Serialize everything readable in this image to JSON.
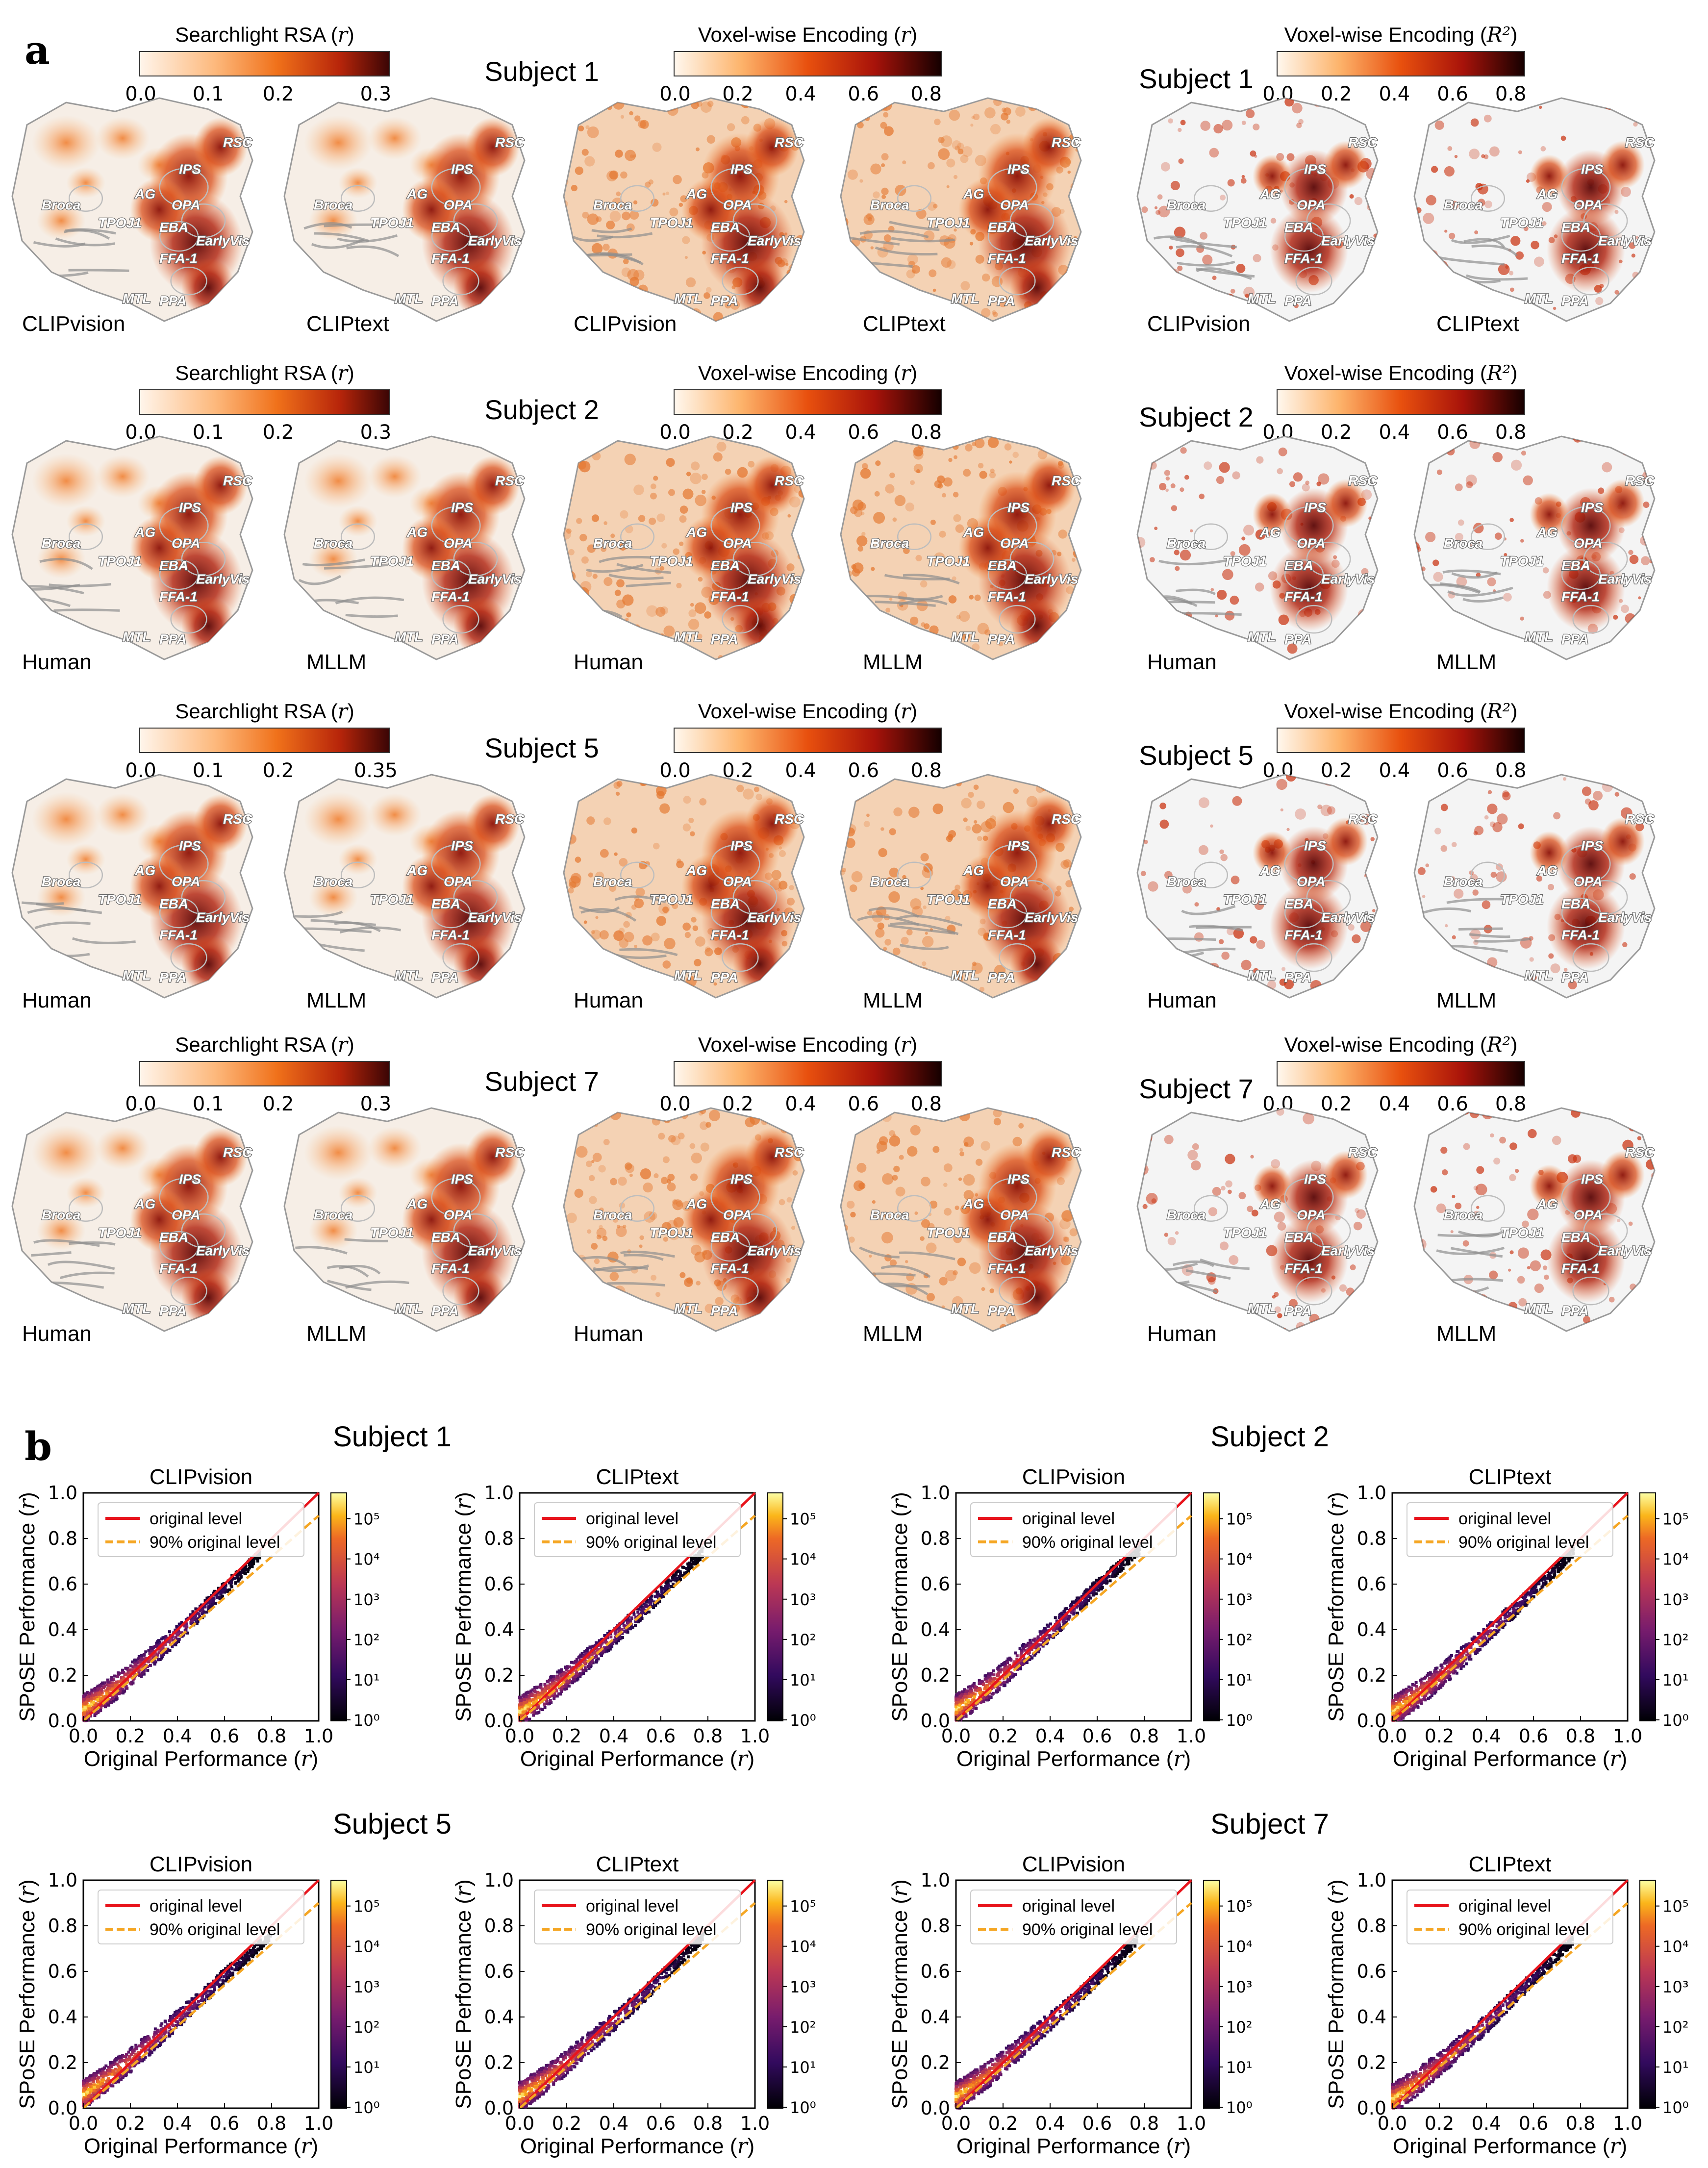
{
  "panel_a": {
    "letter": "a",
    "rows": [
      {
        "subject": "Subject 1",
        "rsa": {
          "title": "Searchlight RSA (r)",
          "ticks": [
            "0.0",
            "0.1",
            "0.2",
            "0.3"
          ],
          "labels": [
            "CLIPvision",
            "CLIPtext"
          ]
        },
        "enc_r": {
          "title": "Voxel-wise Encoding (r)",
          "ticks": [
            "0.0",
            "0.2",
            "0.4",
            "0.6",
            "0.8"
          ],
          "labels": [
            "CLIPvision",
            "CLIPtext"
          ]
        },
        "enc_r2": {
          "subject": "Subject 1",
          "title": "Voxel-wise Encoding (R²)",
          "ticks": [
            "0.0",
            "0.2",
            "0.4",
            "0.6",
            "0.8"
          ],
          "labels": [
            "CLIPvision",
            "CLIPtext"
          ]
        }
      },
      {
        "subject": "Subject 2",
        "rsa": {
          "title": "Searchlight RSA (r)",
          "ticks": [
            "0.0",
            "0.1",
            "0.2",
            "0.3"
          ],
          "labels": [
            "Human",
            "MLLM"
          ]
        },
        "enc_r": {
          "title": "Voxel-wise Encoding (r)",
          "ticks": [
            "0.0",
            "0.2",
            "0.4",
            "0.6",
            "0.8"
          ],
          "labels": [
            "Human",
            "MLLM"
          ]
        },
        "enc_r2": {
          "subject": "Subject 2",
          "title": "Voxel-wise Encoding (R²)",
          "ticks": [
            "0.0",
            "0.2",
            "0.4",
            "0.6",
            "0.8"
          ],
          "labels": [
            "Human",
            "MLLM"
          ]
        }
      },
      {
        "subject": "Subject 5",
        "rsa": {
          "title": "Searchlight RSA (r)",
          "ticks": [
            "0.0",
            "0.1",
            "0.2",
            "0.35"
          ],
          "labels": [
            "Human",
            "MLLM"
          ]
        },
        "enc_r": {
          "title": "Voxel-wise Encoding (r)",
          "ticks": [
            "0.0",
            "0.2",
            "0.4",
            "0.6",
            "0.8"
          ],
          "labels": [
            "Human",
            "MLLM"
          ]
        },
        "enc_r2": {
          "subject": "Subject 5",
          "title": "Voxel-wise Encoding (R²)",
          "ticks": [
            "0.0",
            "0.2",
            "0.4",
            "0.6",
            "0.8"
          ],
          "labels": [
            "Human",
            "MLLM"
          ]
        }
      },
      {
        "subject": "Subject 7",
        "rsa": {
          "title": "Searchlight RSA (r)",
          "ticks": [
            "0.0",
            "0.1",
            "0.2",
            "0.3"
          ],
          "labels": [
            "Human",
            "MLLM"
          ]
        },
        "enc_r": {
          "title": "Voxel-wise Encoding (r)",
          "ticks": [
            "0.0",
            "0.2",
            "0.4",
            "0.6",
            "0.8"
          ],
          "labels": [
            "Human",
            "MLLM"
          ]
        },
        "enc_r2": {
          "subject": "Subject 7",
          "title": "Voxel-wise Encoding (R²)",
          "ticks": [
            "0.0",
            "0.2",
            "0.4",
            "0.6",
            "0.8"
          ],
          "labels": [
            "Human",
            "MLLM"
          ]
        }
      }
    ],
    "roi_labels": [
      "RSC",
      "IPS",
      "AG",
      "OPA",
      "Broca",
      "TPOJ1",
      "EBA",
      "EarlyVis",
      "FFA-1",
      "MTL",
      "PPA"
    ]
  },
  "panel_b": {
    "letter": "b",
    "chart_data": [
      {
        "type": "scatter",
        "subject": "Subject 1",
        "title": "CLIPvision",
        "xlabel": "Original Performance (r)",
        "ylabel": "SPoSE Performance (r)",
        "xlim": [
          0,
          1
        ],
        "ylim": [
          0,
          1
        ],
        "x_ticks": [
          "0.0",
          "0.2",
          "0.4",
          "0.6",
          "0.8",
          "1.0"
        ],
        "y_ticks": [
          "0.0",
          "0.2",
          "0.4",
          "0.6",
          "0.8",
          "1.0"
        ],
        "legend": [
          "original level",
          "90% original level"
        ],
        "legend_loc": "upper left",
        "colorbar_ticks": [
          "10⁰",
          "10¹",
          "10²",
          "10³",
          "10⁴",
          "10⁵"
        ],
        "density_curve": [
          [
            0.0,
            0.05
          ],
          [
            0.1,
            0.12
          ],
          [
            0.2,
            0.2
          ],
          [
            0.3,
            0.29
          ],
          [
            0.4,
            0.38
          ],
          [
            0.5,
            0.48
          ],
          [
            0.6,
            0.58
          ],
          [
            0.7,
            0.68
          ],
          [
            0.75,
            0.73
          ]
        ]
      },
      {
        "type": "scatter",
        "subject": "Subject 1",
        "title": "CLIPtext",
        "xlabel": "Original Performance (r)",
        "ylabel": "SPoSE Performance (r)",
        "xlim": [
          0,
          1
        ],
        "ylim": [
          0,
          1
        ],
        "x_ticks": [
          "0.0",
          "0.2",
          "0.4",
          "0.6",
          "0.8",
          "1.0"
        ],
        "y_ticks": [
          "0.0",
          "0.2",
          "0.4",
          "0.6",
          "0.8",
          "1.0"
        ],
        "legend": [
          "original level",
          "90% original level"
        ],
        "legend_loc": "upper left",
        "colorbar_ticks": [
          "10⁰",
          "10¹",
          "10²",
          "10³",
          "10⁴",
          "10⁵"
        ],
        "density_curve": [
          [
            0.0,
            0.04
          ],
          [
            0.1,
            0.11
          ],
          [
            0.2,
            0.19
          ],
          [
            0.3,
            0.28
          ],
          [
            0.4,
            0.37
          ],
          [
            0.5,
            0.46
          ],
          [
            0.6,
            0.56
          ],
          [
            0.7,
            0.66
          ],
          [
            0.78,
            0.74
          ]
        ]
      },
      {
        "type": "scatter",
        "subject": "Subject 2",
        "title": "CLIPvision",
        "xlabel": "Original Performance (r)",
        "ylabel": "SPoSE Performance (r)",
        "xlim": [
          0,
          1
        ],
        "ylim": [
          0,
          1
        ],
        "x_ticks": [
          "0.0",
          "0.2",
          "0.4",
          "0.6",
          "0.8",
          "1.0"
        ],
        "y_ticks": [
          "0.0",
          "0.2",
          "0.4",
          "0.6",
          "0.8",
          "1.0"
        ],
        "legend": [
          "original level",
          "90% original level"
        ],
        "legend_loc": "upper left",
        "colorbar_ticks": [
          "10⁰",
          "10¹",
          "10²",
          "10³",
          "10⁴",
          "10⁵"
        ],
        "density_curve": [
          [
            0.0,
            0.05
          ],
          [
            0.1,
            0.12
          ],
          [
            0.2,
            0.2
          ],
          [
            0.3,
            0.3
          ],
          [
            0.4,
            0.39
          ],
          [
            0.5,
            0.49
          ],
          [
            0.6,
            0.59
          ],
          [
            0.7,
            0.68
          ],
          [
            0.78,
            0.75
          ]
        ]
      },
      {
        "type": "scatter",
        "subject": "Subject 2",
        "title": "CLIPtext",
        "xlabel": "Original Performance (r)",
        "ylabel": "SPoSE Performance (r)",
        "xlim": [
          0,
          1
        ],
        "ylim": [
          0,
          1
        ],
        "x_ticks": [
          "0.0",
          "0.2",
          "0.4",
          "0.6",
          "0.8",
          "1.0"
        ],
        "y_ticks": [
          "0.0",
          "0.2",
          "0.4",
          "0.6",
          "0.8",
          "1.0"
        ],
        "legend": [
          "original level",
          "90% original level"
        ],
        "legend_loc": "upper left",
        "colorbar_ticks": [
          "10⁰",
          "10¹",
          "10²",
          "10³",
          "10⁴",
          "10⁵"
        ],
        "density_curve": [
          [
            0.0,
            0.04
          ],
          [
            0.1,
            0.11
          ],
          [
            0.2,
            0.19
          ],
          [
            0.3,
            0.28
          ],
          [
            0.4,
            0.38
          ],
          [
            0.5,
            0.47
          ],
          [
            0.6,
            0.57
          ],
          [
            0.7,
            0.67
          ],
          [
            0.77,
            0.74
          ]
        ]
      },
      {
        "type": "scatter",
        "subject": "Subject 5",
        "title": "CLIPvision",
        "xlabel": "Original Performance (r)",
        "ylabel": "SPoSE Performance (r)",
        "xlim": [
          0,
          1
        ],
        "ylim": [
          0,
          1
        ],
        "x_ticks": [
          "0.0",
          "0.2",
          "0.4",
          "0.6",
          "0.8",
          "1.0"
        ],
        "y_ticks": [
          "0.0",
          "0.2",
          "0.4",
          "0.6",
          "0.8",
          "1.0"
        ],
        "legend": [
          "original level",
          "90% original level"
        ],
        "legend_loc": "upper left",
        "colorbar_ticks": [
          "10⁰",
          "10¹",
          "10²",
          "10³",
          "10⁴",
          "10⁵"
        ],
        "density_curve": [
          [
            0.0,
            0.06
          ],
          [
            0.1,
            0.13
          ],
          [
            0.2,
            0.21
          ],
          [
            0.3,
            0.3
          ],
          [
            0.4,
            0.39
          ],
          [
            0.5,
            0.48
          ],
          [
            0.6,
            0.58
          ],
          [
            0.7,
            0.67
          ],
          [
            0.8,
            0.76
          ]
        ]
      },
      {
        "type": "scatter",
        "subject": "Subject 5",
        "title": "CLIPtext",
        "xlabel": "Original Performance (r)",
        "ylabel": "SPoSE Performance (r)",
        "xlim": [
          0,
          1
        ],
        "ylim": [
          0,
          1
        ],
        "x_ticks": [
          "0.0",
          "0.2",
          "0.4",
          "0.6",
          "0.8",
          "1.0"
        ],
        "y_ticks": [
          "0.0",
          "0.2",
          "0.4",
          "0.6",
          "0.8",
          "1.0"
        ],
        "legend": [
          "original level",
          "90% original level"
        ],
        "legend_loc": "upper left",
        "colorbar_ticks": [
          "10⁰",
          "10¹",
          "10²",
          "10³",
          "10⁴",
          "10⁵"
        ],
        "density_curve": [
          [
            0.0,
            0.05
          ],
          [
            0.1,
            0.12
          ],
          [
            0.2,
            0.2
          ],
          [
            0.3,
            0.29
          ],
          [
            0.4,
            0.38
          ],
          [
            0.5,
            0.47
          ],
          [
            0.6,
            0.57
          ],
          [
            0.7,
            0.67
          ],
          [
            0.78,
            0.75
          ]
        ]
      },
      {
        "type": "scatter",
        "subject": "Subject 7",
        "title": "CLIPvision",
        "xlabel": "Original Performance (r)",
        "ylabel": "SPoSE Performance (r)",
        "xlim": [
          0,
          1
        ],
        "ylim": [
          0,
          1
        ],
        "x_ticks": [
          "0.0",
          "0.2",
          "0.4",
          "0.6",
          "0.8",
          "1.0"
        ],
        "y_ticks": [
          "0.0",
          "0.2",
          "0.4",
          "0.6",
          "0.8",
          "1.0"
        ],
        "legend": [
          "original level",
          "90% original level"
        ],
        "legend_loc": "upper left",
        "colorbar_ticks": [
          "10⁰",
          "10¹",
          "10²",
          "10³",
          "10⁴",
          "10⁵"
        ],
        "density_curve": [
          [
            0.0,
            0.05
          ],
          [
            0.1,
            0.12
          ],
          [
            0.2,
            0.2
          ],
          [
            0.3,
            0.29
          ],
          [
            0.4,
            0.38
          ],
          [
            0.5,
            0.47
          ],
          [
            0.6,
            0.57
          ],
          [
            0.7,
            0.67
          ],
          [
            0.77,
            0.74
          ]
        ]
      },
      {
        "type": "scatter",
        "subject": "Subject 7",
        "title": "CLIPtext",
        "xlabel": "Original Performance (r)",
        "ylabel": "SPoSE Performance (r)",
        "xlim": [
          0,
          1
        ],
        "ylim": [
          0,
          1
        ],
        "x_ticks": [
          "0.0",
          "0.2",
          "0.4",
          "0.6",
          "0.8",
          "1.0"
        ],
        "y_ticks": [
          "0.0",
          "0.2",
          "0.4",
          "0.6",
          "0.8",
          "1.0"
        ],
        "legend": [
          "original level",
          "90% original level"
        ],
        "legend_loc": "upper left",
        "colorbar_ticks": [
          "10⁰",
          "10¹",
          "10²",
          "10³",
          "10⁴",
          "10⁵"
        ],
        "density_curve": [
          [
            0.0,
            0.04
          ],
          [
            0.1,
            0.11
          ],
          [
            0.2,
            0.19
          ],
          [
            0.3,
            0.28
          ],
          [
            0.4,
            0.37
          ],
          [
            0.5,
            0.47
          ],
          [
            0.6,
            0.57
          ],
          [
            0.7,
            0.67
          ],
          [
            0.77,
            0.74
          ]
        ]
      }
    ]
  },
  "colors": {
    "original_line": "#e8141c",
    "ninety_line": "#f5a623",
    "rsa_high": "#1a0505",
    "r2_high": "#000000"
  }
}
